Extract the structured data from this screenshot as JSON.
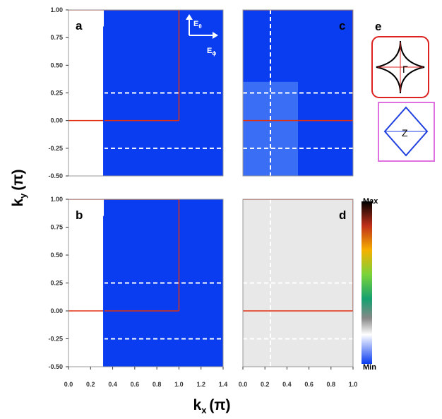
{
  "figure": {
    "ylabel": {
      "main": "k",
      "sub": "y",
      "unit": "(π)"
    },
    "xlabel": {
      "main": "k",
      "sub": "x",
      "unit": "(π)"
    },
    "ylim": [
      -0.5,
      1
    ],
    "yticks": [
      {
        "value": 1,
        "label": "1.00"
      },
      {
        "value": 0.75,
        "label": "0.75"
      },
      {
        "value": 0.5,
        "label": "0.50"
      },
      {
        "value": 0.25,
        "label": "0.25"
      },
      {
        "value": 0,
        "label": "0.00"
      },
      {
        "value": -0.25,
        "label": "-0.25"
      },
      {
        "value": -0.5,
        "label": "-0.50"
      }
    ],
    "xlim_left": [
      0,
      1.4
    ],
    "xticks_left": [
      {
        "value": 0,
        "label": "0.0"
      },
      {
        "value": 0.2,
        "label": "0.2"
      },
      {
        "value": 0.4,
        "label": "0.4"
      },
      {
        "value": 0.6,
        "label": "0.6"
      },
      {
        "value": 0.8,
        "label": "0.8"
      },
      {
        "value": 1,
        "label": "1.0"
      },
      {
        "value": 1.2,
        "label": "1.2"
      },
      {
        "value": 1.4,
        "label": "1.4"
      }
    ],
    "xlim_right": [
      0,
      1
    ],
    "xticks_right": [
      {
        "value": 0,
        "label": "0.0"
      },
      {
        "value": 0.2,
        "label": "0.2"
      },
      {
        "value": 0.4,
        "label": "0.4"
      },
      {
        "value": 0.6,
        "label": "0.6"
      },
      {
        "value": 0.8,
        "label": "0.8"
      },
      {
        "value": 1,
        "label": "1.0"
      }
    ],
    "panels": [
      "a",
      "b",
      "c",
      "d",
      "e"
    ],
    "polarization": {
      "theta": {
        "main": "E",
        "sub": "θ"
      },
      "phi": {
        "main": "E",
        "sub": "ϕ"
      }
    },
    "colorbar": {
      "max": "Max",
      "min": "Min"
    },
    "inset_labels": [
      "Γ",
      "Z"
    ]
  }
}
